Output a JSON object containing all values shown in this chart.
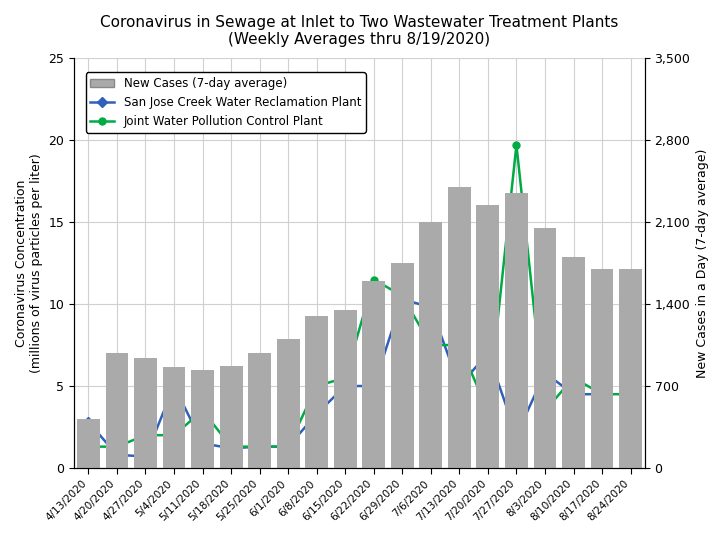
{
  "title_line1": "Coronavirus in Sewage at Inlet to Two Wastewater Treatment Plants",
  "title_line2": "(Weekly Averages thru 8/19/2020)",
  "ylabel_left": "Coronavirus Concentration\n(millions of virus particles per liter)",
  "ylabel_right": "New Cases in a Day (7-day average)",
  "ylim_left": [
    0,
    25
  ],
  "ylim_right": [
    0,
    3500
  ],
  "yticks_left": [
    0,
    5,
    10,
    15,
    20,
    25
  ],
  "yticks_right": [
    0,
    700,
    1400,
    2100,
    2800,
    3500
  ],
  "x_labels": [
    "4/13/2020",
    "4/20/2020",
    "4/27/2020",
    "5/4/2020",
    "5/11/2020",
    "5/18/2020",
    "5/25/2020",
    "6/1/2020",
    "6/8/2020",
    "6/15/2020",
    "6/22/2020",
    "6/29/2020",
    "7/6/2020",
    "7/13/2020",
    "7/20/2020",
    "7/27/2020",
    "8/3/2020",
    "8/10/2020",
    "8/17/2020",
    "8/24/2020"
  ],
  "bar_color": "#aaaaaa",
  "bar_values": [
    420,
    980,
    940,
    860,
    840,
    870,
    980,
    1100,
    1300,
    1350,
    1600,
    1750,
    2100,
    2400,
    2250,
    2350,
    2050,
    1800,
    1700,
    1700
  ],
  "sjc_y": [
    2.8,
    0.8,
    0.7,
    5.0,
    1.5,
    1.2,
    1.3,
    1.3,
    3.3,
    5.0,
    5.0,
    10.3,
    9.8,
    5.0,
    7.0,
    2.0,
    5.8,
    4.5,
    4.5,
    null
  ],
  "jwp_y": [
    1.3,
    1.3,
    2.0,
    2.0,
    3.5,
    1.3,
    1.3,
    1.3,
    5.0,
    5.5,
    11.5,
    10.5,
    7.5,
    7.5,
    3.5,
    19.7,
    3.5,
    5.5,
    4.5,
    4.5
  ],
  "sjc_color": "#3060bb",
  "jwp_color": "#00aa44",
  "legend_items": [
    "New Cases (7-day average)",
    "San Jose Creek Water Reclamation Plant",
    "Joint Water Pollution Control Plant"
  ],
  "background_color": "#ffffff",
  "grid_color": "#d0d0d0",
  "right_axis_color": "#000000",
  "title_fontsize": 11,
  "axis_label_fontsize": 9,
  "tick_fontsize": 9,
  "legend_fontsize": 8.5
}
